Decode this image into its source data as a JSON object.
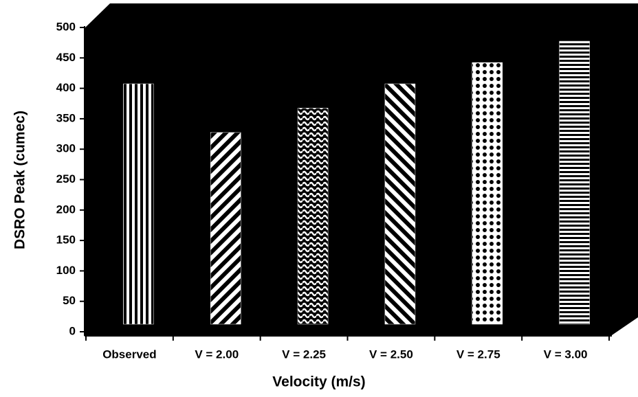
{
  "chart_data": {
    "type": "bar",
    "x_label": "Velocity (m/s)",
    "y_label": "DSRO Peak (cumec)",
    "categories": [
      "Observed",
      "V = 2.00",
      "V = 2.25",
      "V = 2.50",
      "V = 2.75",
      "V = 3.00"
    ],
    "values": [
      395,
      315,
      355,
      395,
      430,
      465
    ],
    "color": "#ffffff",
    "ylim": [
      0,
      500
    ],
    "yticks": [
      0,
      50,
      100,
      150,
      200,
      250,
      300,
      350,
      400,
      450,
      500
    ]
  }
}
